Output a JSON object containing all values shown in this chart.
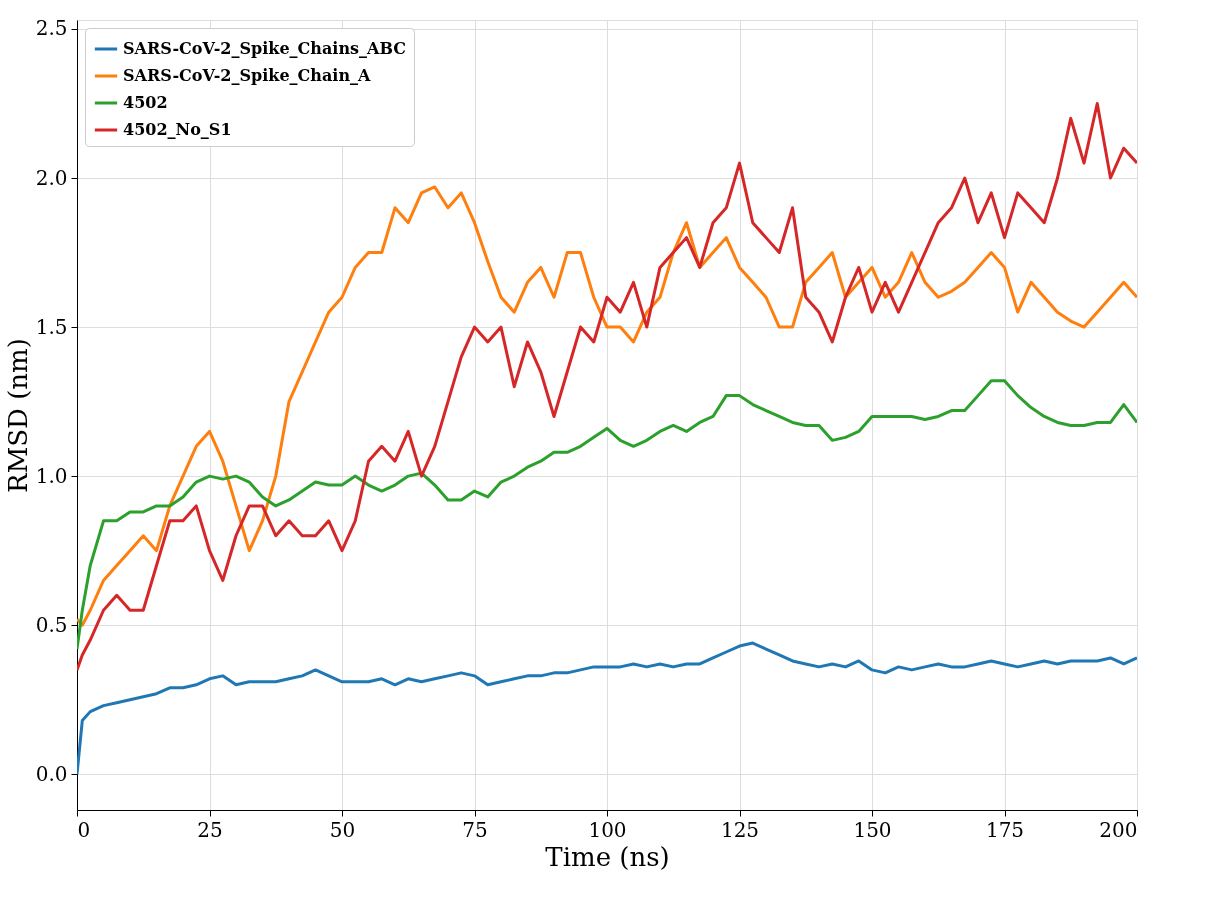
{
  "chart_data": {
    "type": "line",
    "xlabel": "Time (ns)",
    "ylabel": "RMSD (nm)",
    "x": [
      0,
      1,
      2.5,
      5,
      7.5,
      10,
      12.5,
      15,
      17.5,
      20,
      22.5,
      25,
      27.5,
      30,
      32.5,
      35,
      37.5,
      40,
      42.5,
      45,
      47.5,
      50,
      52.5,
      55,
      57.5,
      60,
      62.5,
      65,
      67.5,
      70,
      72.5,
      75,
      77.5,
      80,
      82.5,
      85,
      87.5,
      90,
      92.5,
      95,
      97.5,
      100,
      102.5,
      105,
      107.5,
      110,
      112.5,
      115,
      117.5,
      120,
      122.5,
      125,
      127.5,
      130,
      132.5,
      135,
      137.5,
      140,
      142.5,
      145,
      147.5,
      150,
      152.5,
      155,
      157.5,
      160,
      162.5,
      165,
      167.5,
      170,
      172.5,
      175,
      177.5,
      180,
      182.5,
      185,
      187.5,
      190,
      192.5,
      195,
      197.5,
      200
    ],
    "series": [
      {
        "name": "SARS-CoV-2_Spike_Chains_ABC",
        "color": "#1f77b4",
        "values": [
          0.0,
          0.18,
          0.21,
          0.23,
          0.24,
          0.25,
          0.26,
          0.27,
          0.29,
          0.29,
          0.3,
          0.32,
          0.33,
          0.3,
          0.31,
          0.31,
          0.31,
          0.32,
          0.33,
          0.35,
          0.33,
          0.31,
          0.31,
          0.31,
          0.32,
          0.3,
          0.32,
          0.31,
          0.32,
          0.33,
          0.34,
          0.33,
          0.3,
          0.31,
          0.32,
          0.33,
          0.33,
          0.34,
          0.34,
          0.35,
          0.36,
          0.36,
          0.36,
          0.37,
          0.36,
          0.37,
          0.36,
          0.37,
          0.37,
          0.39,
          0.41,
          0.43,
          0.44,
          0.42,
          0.4,
          0.38,
          0.37,
          0.36,
          0.37,
          0.36,
          0.38,
          0.35,
          0.34,
          0.36,
          0.35,
          0.36,
          0.37,
          0.36,
          0.36,
          0.37,
          0.38,
          0.37,
          0.36,
          0.37,
          0.38,
          0.37,
          0.38,
          0.38,
          0.38,
          0.39,
          0.37,
          0.39
        ]
      },
      {
        "name": "SARS-CoV-2_Spike_Chain_A",
        "color": "#ff7f0e",
        "values": [
          0.52,
          0.5,
          0.55,
          0.65,
          0.7,
          0.75,
          0.8,
          0.75,
          0.9,
          1.0,
          1.1,
          1.15,
          1.05,
          0.9,
          0.75,
          0.85,
          1.0,
          1.25,
          1.35,
          1.45,
          1.55,
          1.6,
          1.7,
          1.75,
          1.75,
          1.9,
          1.85,
          1.95,
          1.97,
          1.9,
          1.95,
          1.85,
          1.72,
          1.6,
          1.55,
          1.65,
          1.7,
          1.6,
          1.75,
          1.75,
          1.6,
          1.5,
          1.5,
          1.45,
          1.55,
          1.6,
          1.75,
          1.85,
          1.7,
          1.75,
          1.8,
          1.7,
          1.65,
          1.6,
          1.5,
          1.5,
          1.65,
          1.7,
          1.75,
          1.6,
          1.65,
          1.7,
          1.6,
          1.65,
          1.75,
          1.65,
          1.6,
          1.62,
          1.65,
          1.7,
          1.75,
          1.7,
          1.55,
          1.65,
          1.6,
          1.55,
          1.52,
          1.5,
          1.55,
          1.6,
          1.65,
          1.6
        ]
      },
      {
        "name": "4502",
        "color": "#2ca02c",
        "values": [
          0.42,
          0.55,
          0.7,
          0.85,
          0.85,
          0.88,
          0.88,
          0.9,
          0.9,
          0.93,
          0.98,
          1.0,
          0.99,
          1.0,
          0.98,
          0.93,
          0.9,
          0.92,
          0.95,
          0.98,
          0.97,
          0.97,
          1.0,
          0.97,
          0.95,
          0.97,
          1.0,
          1.01,
          0.97,
          0.92,
          0.92,
          0.95,
          0.93,
          0.98,
          1.0,
          1.03,
          1.05,
          1.08,
          1.08,
          1.1,
          1.13,
          1.16,
          1.12,
          1.1,
          1.12,
          1.15,
          1.17,
          1.15,
          1.18,
          1.2,
          1.27,
          1.27,
          1.24,
          1.22,
          1.2,
          1.18,
          1.17,
          1.17,
          1.12,
          1.13,
          1.15,
          1.2,
          1.2,
          1.2,
          1.2,
          1.19,
          1.2,
          1.22,
          1.22,
          1.27,
          1.32,
          1.32,
          1.27,
          1.23,
          1.2,
          1.18,
          1.17,
          1.17,
          1.18,
          1.18,
          1.24,
          1.18
        ]
      },
      {
        "name": "4502_No_S1",
        "color": "#d62728",
        "values": [
          0.35,
          0.4,
          0.45,
          0.55,
          0.6,
          0.55,
          0.55,
          0.7,
          0.85,
          0.85,
          0.9,
          0.75,
          0.65,
          0.8,
          0.9,
          0.9,
          0.8,
          0.85,
          0.8,
          0.8,
          0.85,
          0.75,
          0.85,
          1.05,
          1.1,
          1.05,
          1.15,
          1.0,
          1.1,
          1.25,
          1.4,
          1.5,
          1.45,
          1.5,
          1.3,
          1.45,
          1.35,
          1.2,
          1.35,
          1.5,
          1.45,
          1.6,
          1.55,
          1.65,
          1.5,
          1.7,
          1.75,
          1.8,
          1.7,
          1.85,
          1.9,
          2.05,
          1.85,
          1.8,
          1.75,
          1.9,
          1.6,
          1.55,
          1.45,
          1.6,
          1.7,
          1.55,
          1.65,
          1.55,
          1.65,
          1.75,
          1.85,
          1.9,
          2.0,
          1.85,
          1.95,
          1.8,
          1.95,
          1.9,
          1.85,
          2.0,
          2.2,
          2.05,
          2.25,
          2.0,
          2.1,
          2.05
        ]
      }
    ],
    "xlim": [
      0,
      200
    ],
    "xticks": [
      0,
      25,
      50,
      75,
      100,
      125,
      150,
      175,
      200
    ],
    "ylim": [
      -0.12,
      2.53
    ],
    "yticks": [
      {
        "value": 0,
        "label": "0.0"
      },
      0.5,
      {
        "value": 1,
        "label": "1.0"
      },
      1.5,
      {
        "value": 2,
        "label": "2.0"
      },
      2.5
    ],
    "grid": true,
    "legend": "top left",
    "marker": "none",
    "line_style": "solid"
  }
}
